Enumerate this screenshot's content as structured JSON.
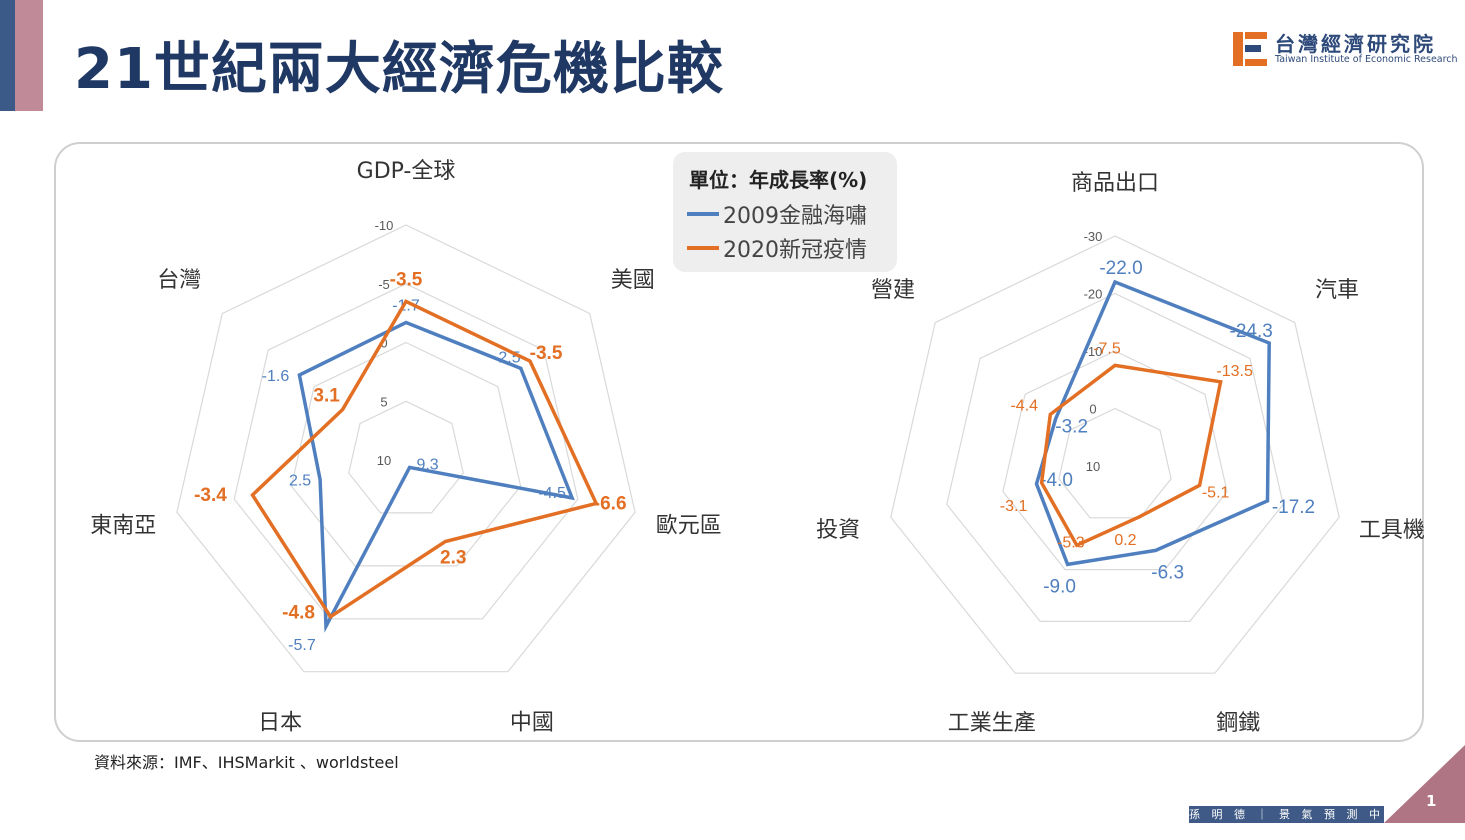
{
  "title": "21世紀兩大經濟危機比較",
  "logo": {
    "zh": "台灣經濟研究院",
    "en": "Taiwan Institute of Economic Research"
  },
  "legend": {
    "title": "單位：年成長率(%)",
    "series": [
      "2009金融海嘯",
      "2020新冠疫情"
    ]
  },
  "colors": {
    "s2009": "#4f7fbf",
    "s2020": "#e26f23",
    "grid": "#d9d9d9"
  },
  "source": "資料來源：IMF、IHSMarkit 、worldsteel",
  "footer": "孫 明 德 ｜ 景 氣 預 測 中 心",
  "page_number": "1",
  "chart_data": [
    {
      "type": "radar",
      "axis": "reversed",
      "scale": [
        -10,
        10
      ],
      "ticks": [
        -10,
        -5,
        0,
        5,
        10
      ],
      "categories": [
        "GDP-全球",
        "美國",
        "歐元區",
        "中國",
        "日本",
        "東南亞",
        "台灣"
      ],
      "series": [
        {
          "name": "2009金融海嘯",
          "values": [
            -1.7,
            -2.5,
            -4.5,
            9.3,
            -5.7,
            2.5,
            -1.6
          ],
          "labels": [
            "-1.7",
            "-2.5",
            "-4.5",
            "9.3",
            "-5.7",
            "2.5",
            "-1.6"
          ]
        },
        {
          "name": "2020新冠疫情",
          "values": [
            -3.5,
            -3.5,
            -6.6,
            2.3,
            -4.8,
            -3.4,
            3.1
          ],
          "labels": [
            "-3.5",
            "-3.5",
            "-6.6",
            "2.3",
            "-4.8",
            "-3.4",
            "3.1"
          ]
        }
      ]
    },
    {
      "type": "radar",
      "axis": "reversed",
      "scale": [
        -30,
        10
      ],
      "ticks": [
        -30,
        -20,
        -10,
        0,
        10
      ],
      "categories": [
        "商品出口",
        "汽車",
        "工具機",
        "鋼鐵",
        "工業生產",
        "投資",
        "營建"
      ],
      "series": [
        {
          "name": "2009金融海嘯",
          "values": [
            -22.0,
            -24.3,
            -17.2,
            -6.3,
            -9.0,
            -4.0,
            -3.2
          ],
          "labels": [
            "-22.0",
            "-24.3",
            "-17.2",
            "-6.3",
            "-9.0",
            "-4.0",
            "-3.2"
          ]
        },
        {
          "name": "2020新冠疫情",
          "values": [
            -7.5,
            -13.5,
            -5.1,
            0.2,
            -5.3,
            -3.1,
            -4.4
          ],
          "labels": [
            "-7.5",
            "-13.5",
            "-5.1",
            "0.2",
            "-5.3",
            "-3.1",
            "-4.4"
          ]
        }
      ]
    }
  ]
}
